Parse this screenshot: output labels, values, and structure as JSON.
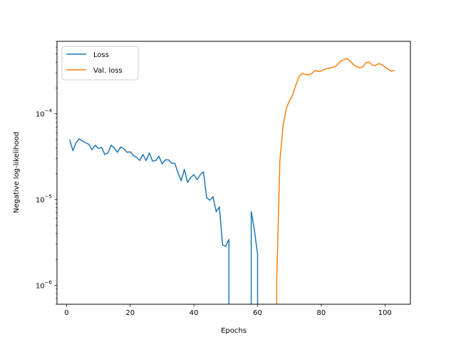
{
  "chart_data": {
    "type": "line",
    "title": "",
    "xlabel": "Epochs",
    "ylabel": "Negative log-likelihood",
    "yscale": "log",
    "xlim": [
      -3,
      108
    ],
    "ylim": [
      6e-07,
      0.0007
    ],
    "x_ticks": [
      {
        "value": 0,
        "label": "0"
      },
      {
        "value": 20,
        "label": "20"
      },
      {
        "value": 40,
        "label": "40"
      },
      {
        "value": 60,
        "label": "60"
      },
      {
        "value": 80,
        "label": "80"
      },
      {
        "value": 100,
        "label": "100"
      }
    ],
    "y_ticks": [
      {
        "value": 1e-06,
        "base": "10",
        "exp": "−6"
      },
      {
        "value": 1e-05,
        "base": "10",
        "exp": "−5"
      },
      {
        "value": 0.0001,
        "base": "10",
        "exp": "−4"
      }
    ],
    "grid": false,
    "legend": "upper left",
    "series": [
      {
        "name": "Loss",
        "color": "#1f77b4",
        "x": [
          1,
          2,
          3,
          4,
          5,
          6,
          7,
          8,
          9,
          10,
          11,
          12,
          13,
          14,
          15,
          16,
          17,
          18,
          19,
          20,
          21,
          22,
          23,
          24,
          25,
          26,
          27,
          28,
          29,
          30,
          31,
          32,
          33,
          34,
          35,
          36,
          37,
          38,
          39,
          40,
          41,
          42,
          43,
          44,
          45,
          46,
          47,
          48,
          49,
          50,
          51,
          52,
          53,
          54,
          55,
          56,
          57,
          58,
          59,
          60
        ],
        "y": [
          5e-05,
          3.7e-05,
          4.6e-05,
          5.1e-05,
          4.8e-05,
          4.6e-05,
          4.4e-05,
          3.8e-05,
          4.3e-05,
          3.95e-05,
          4.05e-05,
          3.35e-05,
          3.5e-05,
          4.3e-05,
          4e-05,
          3.55e-05,
          4.1e-05,
          3.9e-05,
          3.55e-05,
          3.6e-05,
          3.25e-05,
          3.1e-05,
          2.85e-05,
          3.35e-05,
          2.85e-05,
          3.5e-05,
          2.8e-05,
          2.85e-05,
          3.2e-05,
          2.6e-05,
          2.9e-05,
          2.9e-05,
          2.65e-05,
          2.65e-05,
          2.05e-05,
          1.65e-05,
          2.25e-05,
          1.58e-05,
          1.8e-05,
          1.95e-05,
          1.7e-05,
          1.95e-05,
          2.1e-05,
          1.05e-05,
          9.8e-06,
          1.08e-05,
          7.2e-06,
          8.2e-06,
          2.95e-06,
          2.85e-06,
          3.45e-06,
          null,
          null,
          null,
          null,
          null,
          null,
          7.3e-06,
          4.4e-06,
          2.3e-06
        ]
      },
      {
        "name": "Val. loss",
        "color": "#ff7f0e",
        "x": [
          66,
          67,
          68,
          69,
          70,
          71,
          72,
          73,
          74,
          75,
          76,
          77,
          78,
          79,
          80,
          81,
          82,
          83,
          84,
          85,
          86,
          87,
          88,
          89,
          90,
          91,
          92,
          93,
          94,
          95,
          96,
          97,
          98,
          99,
          100,
          101,
          102,
          103
        ],
        "y": [
          1.1e-06,
          2.8e-05,
          7.2e-05,
          0.000115,
          0.000142,
          0.000165,
          0.000215,
          0.000272,
          0.000295,
          0.000288,
          0.000282,
          0.000295,
          0.00032,
          0.000312,
          0.000315,
          0.00033,
          0.000338,
          0.000345,
          0.00035,
          0.00037,
          0.00041,
          0.000425,
          0.00044,
          0.000415,
          0.00038,
          0.000355,
          0.000345,
          0.00035,
          0.000395,
          0.0004,
          0.00037,
          0.000365,
          0.000385,
          0.000375,
          0.00035,
          0.00033,
          0.000315,
          0.00032
        ]
      }
    ]
  }
}
